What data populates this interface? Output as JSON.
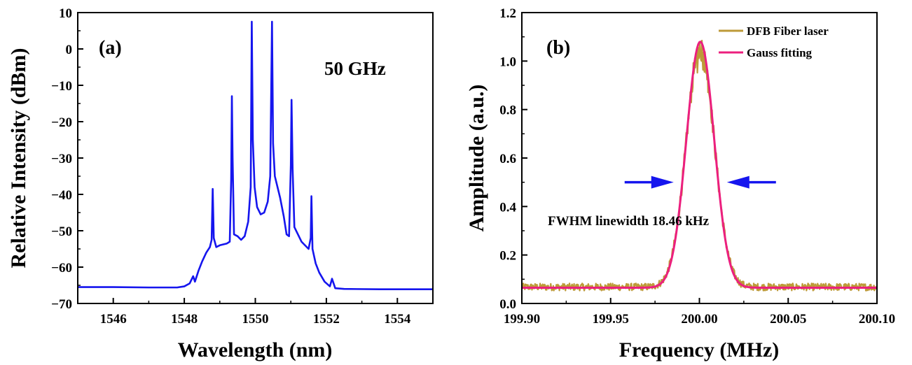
{
  "figure": {
    "colors": {
      "spectrum": "#1515ee",
      "dfb": "#bd9a38",
      "gauss": "#ec1f7e",
      "arrow": "#1515ee",
      "axes": "#000000"
    }
  },
  "chart_data": [
    {
      "type": "line",
      "panel_label": "(a)",
      "annotation": "50 GHz",
      "xlabel": "Wavelength (nm)",
      "ylabel": "Relative Intensity (dBm)",
      "xlim": [
        1545,
        1555
      ],
      "ylim": [
        -70,
        10
      ],
      "xticks": [
        1546,
        1548,
        1550,
        1552,
        1554
      ],
      "xtick_labels": [
        "1546",
        "1548",
        "1550",
        "1552",
        "1554"
      ],
      "yticks": [
        -70,
        -60,
        -50,
        -40,
        -30,
        -20,
        -10,
        0,
        10
      ],
      "ytick_labels": [
        "−70",
        "−60",
        "−50",
        "−40",
        "−30",
        "−20",
        "−10",
        "0",
        "10"
      ],
      "grid": false,
      "series": [
        {
          "color": "#1515ee",
          "points": [
            [
              1545.0,
              -65.5
            ],
            [
              1546.0,
              -65.5
            ],
            [
              1547.0,
              -65.6
            ],
            [
              1547.8,
              -65.6
            ],
            [
              1548.0,
              -65.3
            ],
            [
              1548.15,
              -64.5
            ],
            [
              1548.25,
              -62.5
            ],
            [
              1548.3,
              -64.0
            ],
            [
              1548.4,
              -61.0
            ],
            [
              1548.5,
              -58.5
            ],
            [
              1548.62,
              -56.0
            ],
            [
              1548.72,
              -54.5
            ],
            [
              1548.77,
              -52.5
            ],
            [
              1548.8,
              -38.5
            ],
            [
              1548.83,
              -52.0
            ],
            [
              1548.9,
              -54.5
            ],
            [
              1549.0,
              -54.0
            ],
            [
              1549.2,
              -53.5
            ],
            [
              1549.28,
              -53.0
            ],
            [
              1549.32,
              -36.0
            ],
            [
              1549.34,
              -13.0
            ],
            [
              1549.36,
              -30.0
            ],
            [
              1549.4,
              -51.0
            ],
            [
              1549.5,
              -51.5
            ],
            [
              1549.6,
              -52.5
            ],
            [
              1549.7,
              -51.5
            ],
            [
              1549.8,
              -47.5
            ],
            [
              1549.87,
              -38.0
            ],
            [
              1549.9,
              7.5
            ],
            [
              1549.93,
              -25.0
            ],
            [
              1549.98,
              -38.0
            ],
            [
              1550.05,
              -43.5
            ],
            [
              1550.15,
              -45.5
            ],
            [
              1550.25,
              -45.0
            ],
            [
              1550.35,
              -42.0
            ],
            [
              1550.42,
              -35.0
            ],
            [
              1550.47,
              7.5
            ],
            [
              1550.5,
              -26.0
            ],
            [
              1550.55,
              -35.0
            ],
            [
              1550.7,
              -41.0
            ],
            [
              1550.8,
              -46.0
            ],
            [
              1550.88,
              -51.0
            ],
            [
              1550.95,
              -51.5
            ],
            [
              1551.0,
              -32.0
            ],
            [
              1551.02,
              -14.0
            ],
            [
              1551.05,
              -33.0
            ],
            [
              1551.1,
              -49.0
            ],
            [
              1551.3,
              -53.0
            ],
            [
              1551.5,
              -55.0
            ],
            [
              1551.56,
              -52.0
            ],
            [
              1551.58,
              -40.5
            ],
            [
              1551.61,
              -55.0
            ],
            [
              1551.7,
              -59.0
            ],
            [
              1551.8,
              -61.5
            ],
            [
              1551.95,
              -64.0
            ],
            [
              1552.1,
              -65.3
            ],
            [
              1552.16,
              -63.2
            ],
            [
              1552.25,
              -65.8
            ],
            [
              1552.5,
              -66.0
            ],
            [
              1553.5,
              -66.1
            ],
            [
              1555.0,
              -66.1
            ]
          ]
        }
      ]
    },
    {
      "type": "line",
      "panel_label": "(b)",
      "xlabel": "Frequency (MHz)",
      "ylabel": "Amplitude (a.u.)",
      "xlim": [
        199.9,
        200.1
      ],
      "ylim": [
        0.0,
        1.2
      ],
      "xticks": [
        199.9,
        199.95,
        200.0,
        200.05,
        200.1
      ],
      "xtick_labels": [
        "199.90",
        "199.95",
        "200.00",
        "200.05",
        "200.10"
      ],
      "yticks": [
        0.0,
        0.2,
        0.4,
        0.6,
        0.8,
        1.0,
        1.2
      ],
      "ytick_labels": [
        "0.0",
        "0.2",
        "0.4",
        "0.6",
        "0.8",
        "1.0",
        "1.2"
      ],
      "grid": false,
      "legend": {
        "position": "top-right",
        "entries": [
          "DFB Fiber laser",
          "Gauss fitting"
        ]
      },
      "annotation": "FWHM linewidth 18.46 kHz",
      "fwhm_markers": {
        "y": 0.5,
        "left_x": 199.9855,
        "right_x": 200.0155
      },
      "series": [
        {
          "name": "DFB Fiber laser",
          "color": "#bd9a38",
          "noisy": true,
          "gauss": {
            "center": 200.0005,
            "sigma": 0.0079,
            "amplitude": 0.99,
            "baseline": 0.068
          }
        },
        {
          "name": "Gauss fitting",
          "color": "#ec1f7e",
          "gauss": {
            "center": 200.0005,
            "sigma": 0.0078,
            "amplitude": 1.015,
            "baseline": 0.065
          }
        }
      ]
    }
  ]
}
